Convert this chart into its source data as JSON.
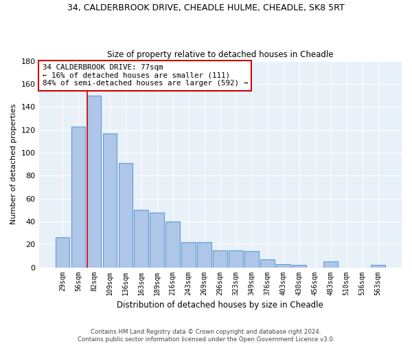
{
  "title1": "34, CALDERBROOK DRIVE, CHEADLE HULME, CHEADLE, SK8 5RT",
  "title2": "Size of property relative to detached houses in Cheadle",
  "xlabel": "Distribution of detached houses by size in Cheadle",
  "ylabel": "Number of detached properties",
  "categories": [
    "29sqm",
    "56sqm",
    "82sqm",
    "109sqm",
    "136sqm",
    "163sqm",
    "189sqm",
    "216sqm",
    "243sqm",
    "269sqm",
    "296sqm",
    "323sqm",
    "349sqm",
    "376sqm",
    "403sqm",
    "430sqm",
    "456sqm",
    "483sqm",
    "510sqm",
    "536sqm",
    "563sqm"
  ],
  "values": [
    26,
    123,
    150,
    117,
    91,
    50,
    48,
    40,
    22,
    22,
    15,
    15,
    14,
    7,
    3,
    2,
    0,
    5,
    0,
    0,
    2
  ],
  "bar_color": "#aec6e8",
  "bar_edge_color": "#5b9bd5",
  "red_line_index": 2,
  "annotation_text": "34 CALDERBROOK DRIVE: 77sqm\n← 16% of detached houses are smaller (111)\n84% of semi-detached houses are larger (592) →",
  "annotation_box_color": "white",
  "annotation_box_edge_color": "#cc0000",
  "red_line_color": "#cc0000",
  "ylim": [
    0,
    180
  ],
  "yticks": [
    0,
    20,
    40,
    60,
    80,
    100,
    120,
    140,
    160,
    180
  ],
  "background_color": "#e8f0f8",
  "grid_color": "white",
  "footer": "Contains HM Land Registry data © Crown copyright and database right 2024.\nContains public sector information licensed under the Open Government Licence v3.0."
}
